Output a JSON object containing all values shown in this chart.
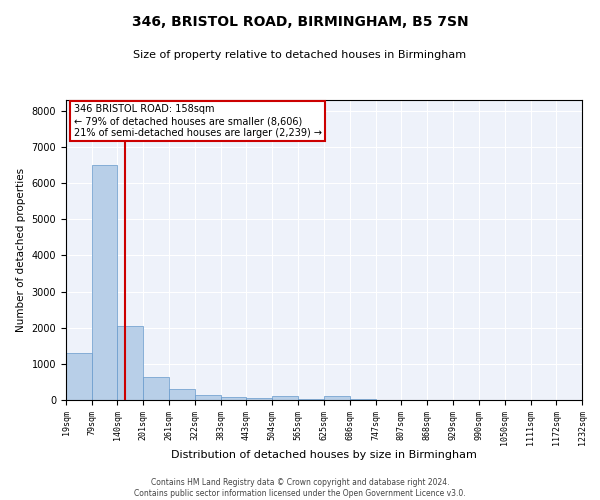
{
  "title": "346, BRISTOL ROAD, BIRMINGHAM, B5 7SN",
  "subtitle": "Size of property relative to detached houses in Birmingham",
  "xlabel": "Distribution of detached houses by size in Birmingham",
  "ylabel": "Number of detached properties",
  "footer_line1": "Contains HM Land Registry data © Crown copyright and database right 2024.",
  "footer_line2": "Contains public sector information licensed under the Open Government Licence v3.0.",
  "bin_edges": [
    19,
    79,
    140,
    201,
    261,
    322,
    383,
    443,
    504,
    565,
    625,
    686,
    747,
    807,
    868,
    929,
    990,
    1050,
    1111,
    1172,
    1232
  ],
  "bar_heights": [
    1300,
    6500,
    2050,
    650,
    295,
    130,
    80,
    50,
    100,
    30,
    100,
    20,
    10,
    5,
    5,
    5,
    3,
    2,
    2,
    2
  ],
  "bar_color": "#b8cfe8",
  "bar_edge_color": "#6699cc",
  "property_size": 158,
  "vline_color": "#cc0000",
  "annotation_text": "346 BRISTOL ROAD: 158sqm\n← 79% of detached houses are smaller (8,606)\n21% of semi-detached houses are larger (2,239) →",
  "annotation_box_color": "#cc0000",
  "ylim": [
    0,
    8300
  ],
  "yticks": [
    0,
    1000,
    2000,
    3000,
    4000,
    5000,
    6000,
    7000,
    8000
  ],
  "background_color": "#eef2fa",
  "grid_color": "#ffffff",
  "title_fontsize": 10,
  "subtitle_fontsize": 8,
  "tick_fontsize": 6,
  "ylabel_fontsize": 7.5,
  "xlabel_fontsize": 8,
  "footer_fontsize": 5.5
}
